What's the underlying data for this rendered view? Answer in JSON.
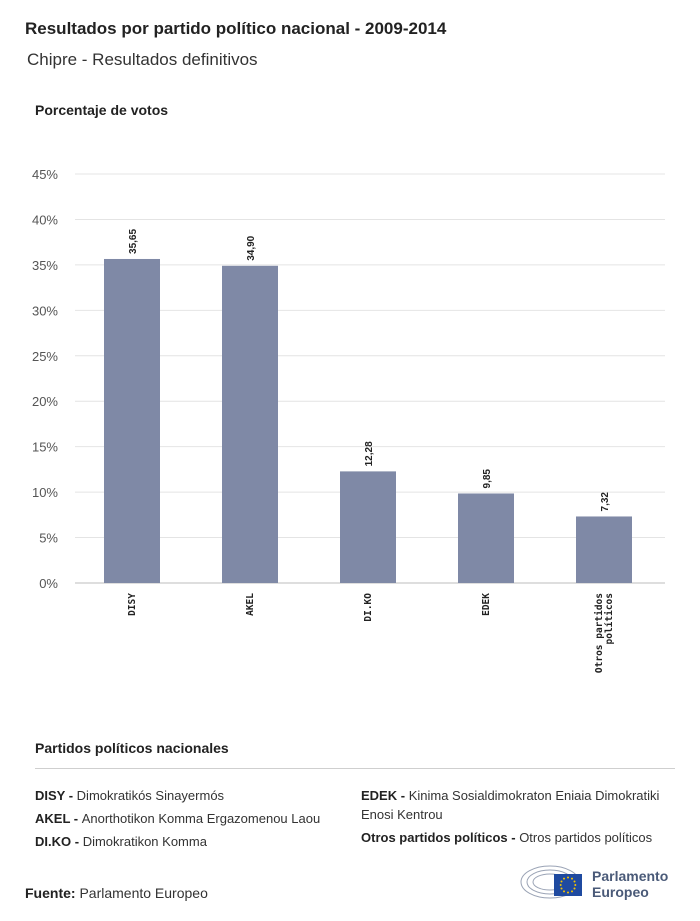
{
  "header": {
    "title": "Resultados por partido político nacional - 2009-2014",
    "subtitle": "Chipre - Resultados definitivos"
  },
  "chart_data": {
    "type": "bar",
    "ylabel": "Porcentaje de votos",
    "categories": [
      "DISY",
      "AKEL",
      "DI.KO",
      "EDEK",
      "Otros partidos políticos"
    ],
    "category_lines": [
      [
        "DISY"
      ],
      [
        "AKEL"
      ],
      [
        "DI.KO"
      ],
      [
        "EDEK"
      ],
      [
        "Otros partidos",
        "políticos"
      ]
    ],
    "values": [
      35.65,
      34.9,
      12.28,
      9.85,
      7.32
    ],
    "value_labels": [
      "35,65",
      "34,90",
      "12,28",
      "9,85",
      "7,32"
    ],
    "ylim": [
      0,
      45
    ],
    "yticks": [
      0,
      5,
      10,
      15,
      20,
      25,
      30,
      35,
      40,
      45
    ],
    "ytick_labels": [
      "0%",
      "5%",
      "10%",
      "15%",
      "20%",
      "25%",
      "30%",
      "35%",
      "40%",
      "45%"
    ],
    "bar_color": "#7f89a6",
    "grid": true
  },
  "legend": {
    "title": "Partidos políticos nacionales",
    "col1": [
      {
        "abbr": "DISY",
        "sep": " - ",
        "name": "Dimokratikós Sinayermós"
      },
      {
        "abbr": "AKEL",
        "sep": " - ",
        "name": "Anorthotikon Komma Ergazomenou Laou"
      },
      {
        "abbr": "DI.KO",
        "sep": " - ",
        "name": "Dimokratikon Komma"
      }
    ],
    "col2": [
      {
        "abbr": "EDEK",
        "sep": " - ",
        "name": "Kinima Sosialdimokraton Eniaia Dimokratiki Enosi Kentrou"
      },
      {
        "abbr": "Otros partidos políticos",
        "sep": " - ",
        "name": "Otros partidos políticos"
      }
    ]
  },
  "footer": {
    "source_label": "Fuente:",
    "source_value": "Parlamento Europeo",
    "logo_line1": "Parlamento",
    "logo_line2": "Europeo"
  }
}
